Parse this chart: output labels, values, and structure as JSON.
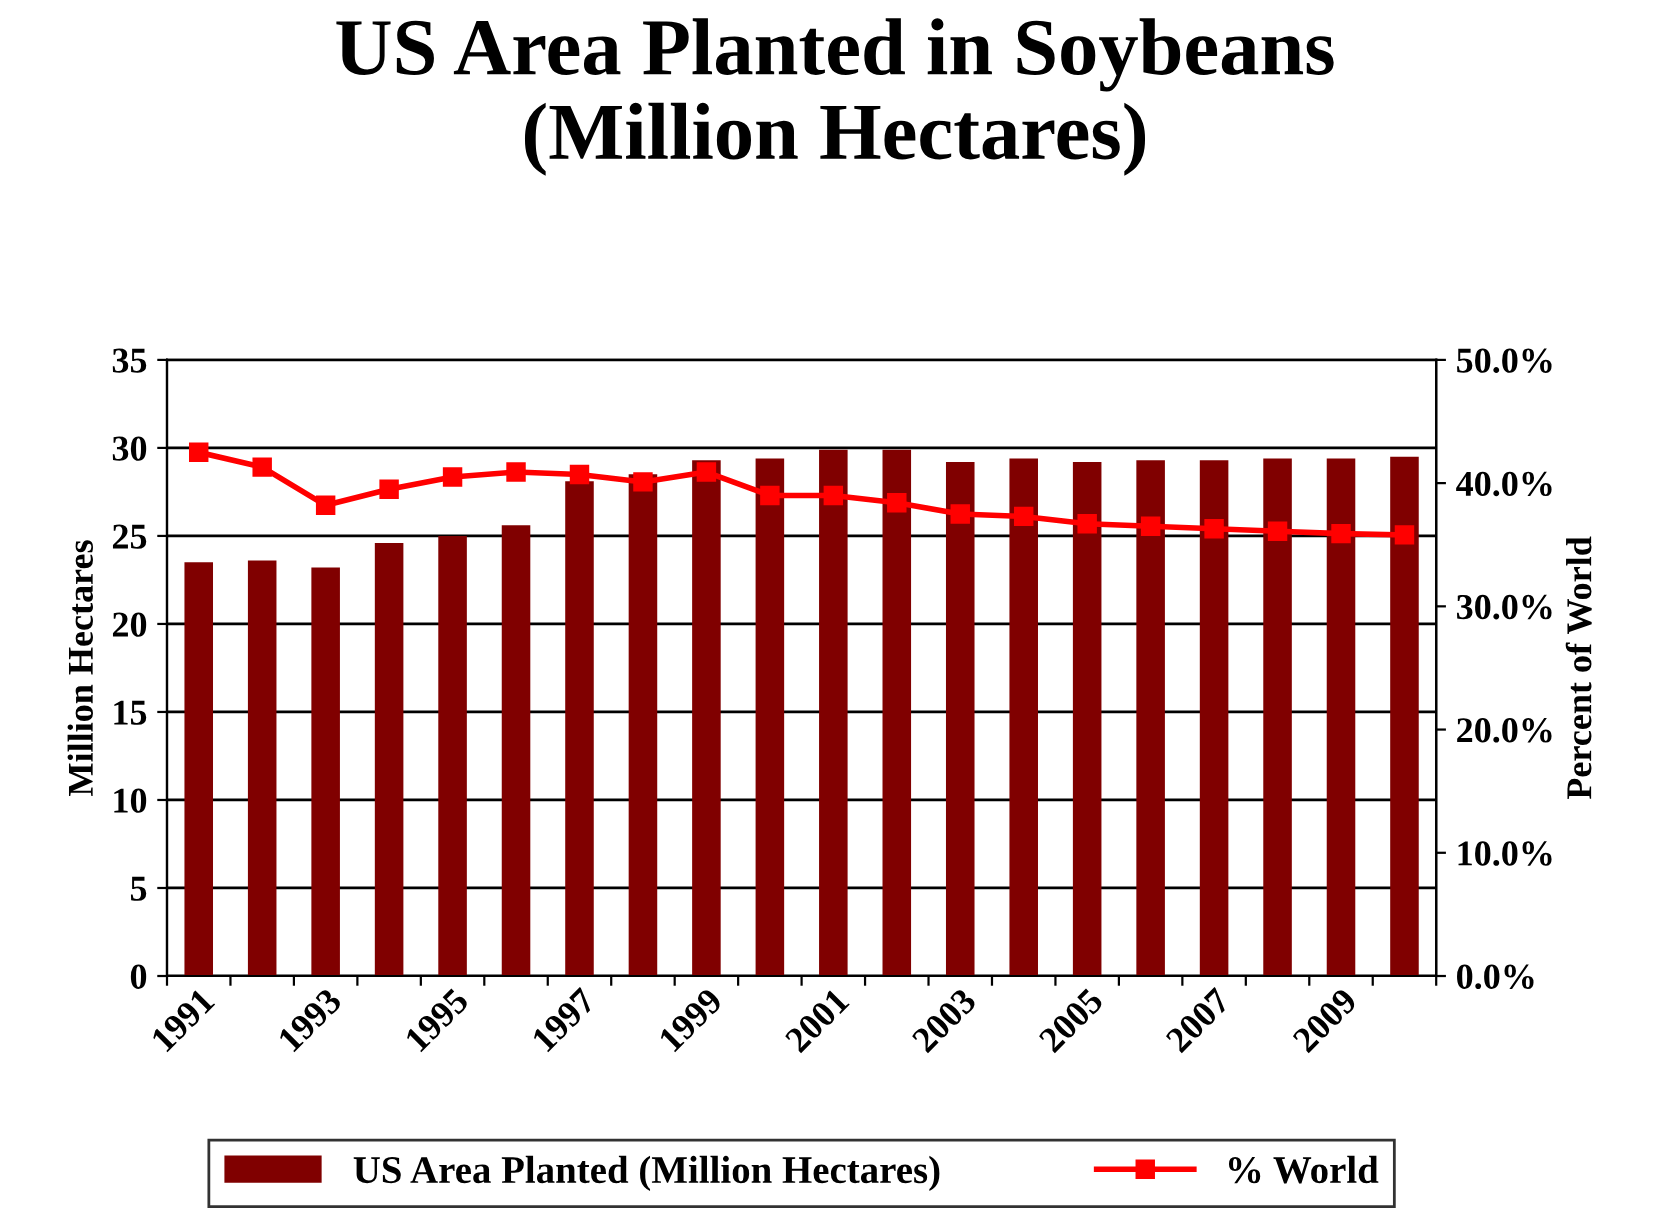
{
  "chart_data": {
    "type": "bar",
    "title": "US Area Planted in Soybeans\n(Million Hectares)",
    "ylabel": "Million Hectares",
    "y2label": "Percent of World",
    "categories": [
      "1991",
      null,
      "1993",
      null,
      "1995",
      null,
      "1997",
      null,
      "1999",
      null,
      "2001",
      null,
      "2003",
      null,
      "2005",
      null,
      "2007",
      null,
      "2009",
      null
    ],
    "series": [
      {
        "name": "US Area Planted (Million Hectares)",
        "color": "#800000",
        "values": [
          23.5,
          23.6,
          23.2,
          24.6,
          25.0,
          25.6,
          28.1,
          28.5,
          29.3,
          29.4,
          29.9,
          29.9,
          29.2,
          29.4,
          29.2,
          29.3,
          29.3,
          29.4,
          29.4,
          29.5
        ]
      },
      {
        "name": "% World",
        "type": "line",
        "axis": "y2",
        "color": "#ff0000",
        "marker": "square",
        "line_style": "solid",
        "values": [
          42.5,
          41.3,
          38.2,
          39.5,
          40.5,
          40.9,
          40.7,
          40.1,
          40.9,
          39.0,
          39.0,
          38.4,
          37.5,
          37.3,
          36.7,
          36.5,
          36.3,
          36.1,
          35.9,
          35.8
        ]
      }
    ],
    "ylim": [
      0,
      35
    ],
    "yticks": [
      0,
      5,
      10,
      15,
      20,
      25,
      30,
      35
    ],
    "y2lim": [
      0,
      50
    ],
    "y2ticks": [
      {
        "value": 0,
        "label": "0.0%"
      },
      {
        "value": 10,
        "label": "10.0%"
      },
      {
        "value": 20,
        "label": "20.0%"
      },
      {
        "value": 30,
        "label": "30.0%"
      },
      {
        "value": 40,
        "label": "40.0%"
      },
      {
        "value": 50,
        "label": "50.0%"
      }
    ],
    "grid": "y",
    "legend": "bottom"
  }
}
